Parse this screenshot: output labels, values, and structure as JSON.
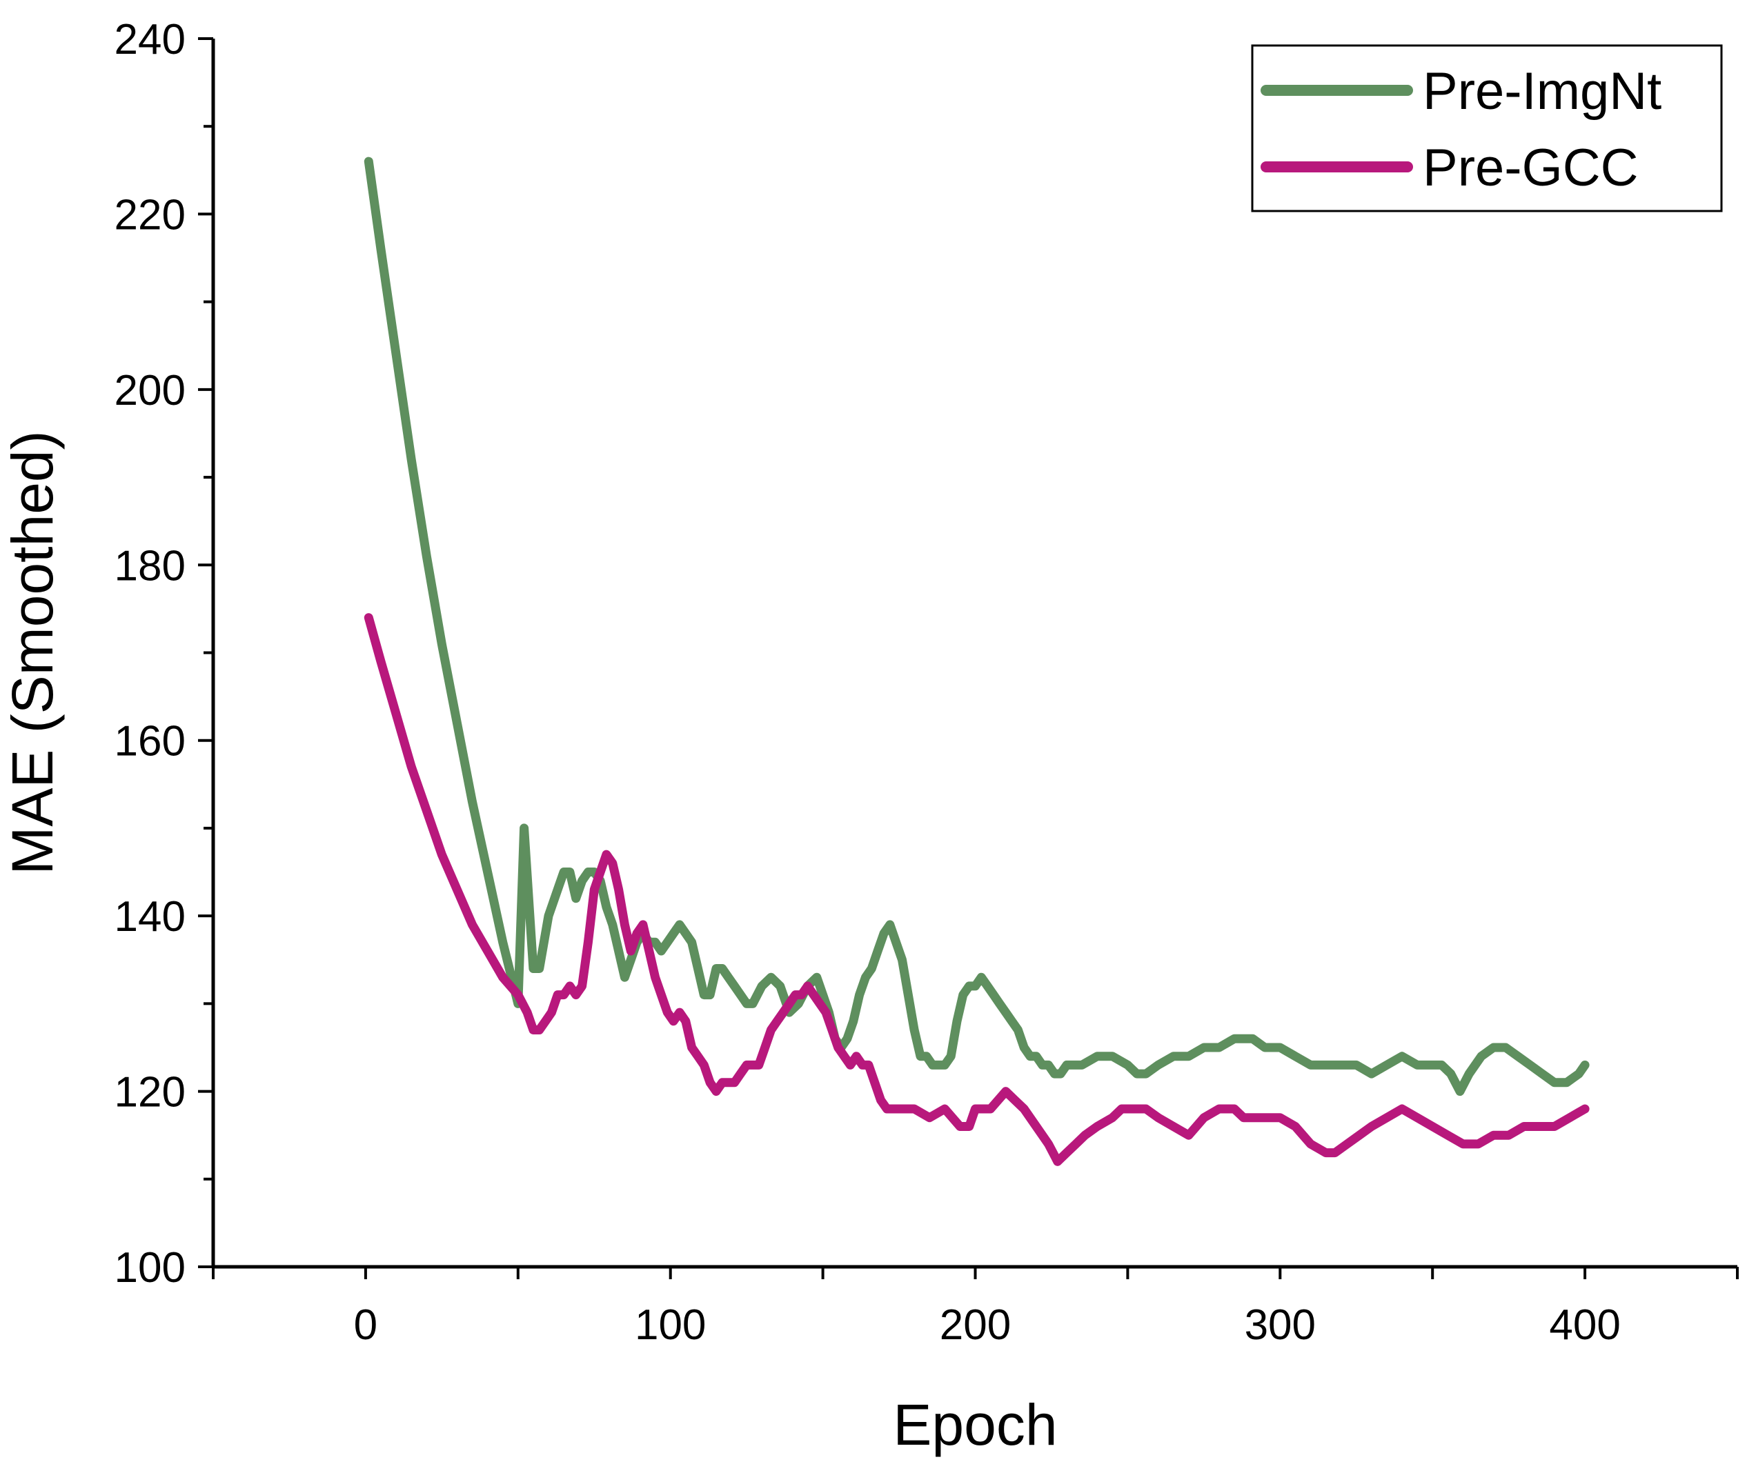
{
  "chart_data": {
    "type": "line",
    "xlabel": "Epoch",
    "ylabel": "MAE (Smoothed)",
    "xlim": [
      -50,
      450
    ],
    "ylim": [
      100,
      240
    ],
    "xticks": [
      0,
      100,
      200,
      300,
      400
    ],
    "yticks": [
      100,
      120,
      140,
      160,
      180,
      200,
      220,
      240
    ],
    "grid": false,
    "legend_position": "top-right",
    "series": [
      {
        "name": "Pre-ImgNt",
        "color": "#5e8f5e",
        "x": [
          1,
          5,
          10,
          15,
          20,
          25,
          30,
          35,
          40,
          45,
          50,
          52,
          55,
          57,
          60,
          63,
          65,
          67,
          69,
          71,
          73,
          75,
          77,
          79,
          81,
          83,
          85,
          87,
          89,
          91,
          93,
          95,
          97,
          99,
          101,
          103,
          105,
          107,
          109,
          111,
          113,
          115,
          117,
          119,
          121,
          123,
          125,
          127,
          130,
          133,
          136,
          139,
          142,
          145,
          148,
          150,
          152,
          154,
          156,
          158,
          160,
          162,
          164,
          166,
          168,
          170,
          172,
          174,
          176,
          178,
          180,
          182,
          184,
          186,
          188,
          190,
          192,
          194,
          196,
          198,
          200,
          202,
          204,
          206,
          208,
          210,
          212,
          214,
          216,
          218,
          220,
          222,
          224,
          226,
          228,
          230,
          235,
          240,
          245,
          250,
          253,
          256,
          260,
          265,
          270,
          275,
          280,
          285,
          288,
          291,
          295,
          300,
          305,
          310,
          315,
          320,
          325,
          330,
          335,
          340,
          345,
          350,
          353,
          356,
          359,
          362,
          366,
          370,
          374,
          378,
          382,
          386,
          390,
          394,
          398,
          400
        ],
        "y": [
          226,
          216,
          204,
          192,
          181,
          171,
          162,
          153,
          145,
          137,
          130,
          150,
          134,
          134,
          140,
          143,
          145,
          145,
          142,
          144,
          145,
          145,
          144,
          141,
          139,
          136,
          133,
          135,
          137,
          138,
          137,
          137,
          136,
          137,
          138,
          139,
          138,
          137,
          134,
          131,
          131,
          134,
          134,
          133,
          132,
          131,
          130,
          130,
          132,
          133,
          132,
          129,
          130,
          132,
          133,
          131,
          129,
          126,
          125,
          126,
          128,
          131,
          133,
          134,
          136,
          138,
          139,
          137,
          135,
          131,
          127,
          124,
          124,
          123,
          123,
          123,
          124,
          128,
          131,
          132,
          132,
          133,
          132,
          131,
          130,
          129,
          128,
          127,
          125,
          124,
          124,
          123,
          123,
          122,
          122,
          123,
          123,
          124,
          124,
          123,
          122,
          122,
          123,
          124,
          124,
          125,
          125,
          126,
          126,
          126,
          125,
          125,
          124,
          123,
          123,
          123,
          123,
          122,
          123,
          124,
          123,
          123,
          123,
          122,
          120,
          122,
          124,
          125,
          125,
          124,
          123,
          122,
          121,
          121,
          122,
          123
        ]
      },
      {
        "name": "Pre-GCC",
        "color": "#b8187c",
        "x": [
          1,
          5,
          10,
          15,
          20,
          25,
          30,
          35,
          40,
          45,
          50,
          53,
          55,
          57,
          59,
          61,
          63,
          65,
          67,
          69,
          71,
          73,
          75,
          77,
          79,
          81,
          83,
          85,
          87,
          89,
          91,
          93,
          95,
          97,
          99,
          101,
          103,
          105,
          107,
          109,
          111,
          113,
          115,
          117,
          119,
          121,
          123,
          125,
          127,
          129,
          131,
          133,
          135,
          137,
          139,
          141,
          143,
          145,
          147,
          149,
          151,
          153,
          155,
          157,
          159,
          161,
          163,
          165,
          167,
          169,
          171,
          173,
          175,
          180,
          185,
          190,
          195,
          198,
          200,
          205,
          210,
          213,
          216,
          220,
          224,
          227,
          230,
          233,
          236,
          240,
          245,
          248,
          252,
          256,
          260,
          265,
          270,
          275,
          280,
          285,
          288,
          292,
          296,
          300,
          305,
          310,
          315,
          318,
          322,
          326,
          330,
          335,
          340,
          345,
          350,
          355,
          360,
          365,
          370,
          375,
          380,
          385,
          390,
          395,
          400
        ],
        "y": [
          174,
          169,
          163,
          157,
          152,
          147,
          143,
          139,
          136,
          133,
          131,
          129,
          127,
          127,
          128,
          129,
          131,
          131,
          132,
          131,
          132,
          137,
          143,
          145,
          147,
          146,
          143,
          139,
          136,
          138,
          139,
          136,
          133,
          131,
          129,
          128,
          129,
          128,
          125,
          124,
          123,
          121,
          120,
          121,
          121,
          121,
          122,
          123,
          123,
          123,
          125,
          127,
          128,
          129,
          130,
          131,
          131,
          132,
          131,
          130,
          129,
          127,
          125,
          124,
          123,
          124,
          123,
          123,
          121,
          119,
          118,
          118,
          118,
          118,
          117,
          118,
          116,
          116,
          118,
          118,
          120,
          119,
          118,
          116,
          114,
          112,
          113,
          114,
          115,
          116,
          117,
          118,
          118,
          118,
          117,
          116,
          115,
          117,
          118,
          118,
          117,
          117,
          117,
          117,
          116,
          114,
          113,
          113,
          114,
          115,
          116,
          117,
          118,
          117,
          116,
          115,
          114,
          114,
          115,
          115,
          116,
          116,
          116,
          117,
          118
        ]
      }
    ]
  }
}
